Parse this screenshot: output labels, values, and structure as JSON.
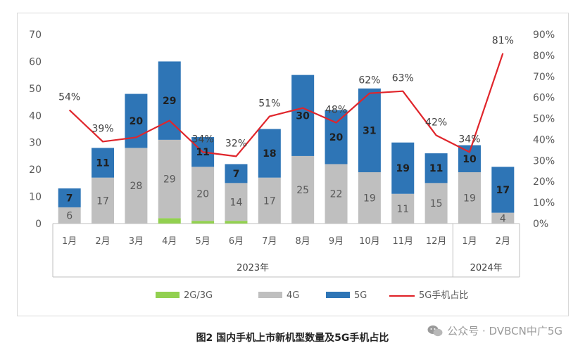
{
  "caption": "图2  国内手机上市新机型数量及5G手机占比",
  "watermark": {
    "text": "公众号 · DVBCN中广5G",
    "icon": "wechat-icon"
  },
  "chart_data": {
    "type": "bar",
    "stacked": true,
    "categories": [
      "1月",
      "2月",
      "3月",
      "4月",
      "5月",
      "6月",
      "7月",
      "8月",
      "9月",
      "10月",
      "11月",
      "12月",
      "1月",
      "2月"
    ],
    "groups": [
      {
        "label": "2023年",
        "start": 0,
        "end": 11
      },
      {
        "label": "2024年",
        "start": 12,
        "end": 13
      }
    ],
    "series": [
      {
        "name": "2G/3G",
        "color": "#92d050",
        "values": [
          0,
          0,
          0,
          2,
          1,
          1,
          0,
          0,
          0,
          0,
          0,
          0,
          0,
          0
        ]
      },
      {
        "name": "4G",
        "color": "#bfbfbf",
        "values": [
          6,
          17,
          28,
          29,
          20,
          14,
          17,
          25,
          22,
          19,
          11,
          15,
          19,
          4
        ]
      },
      {
        "name": "5G",
        "color": "#2e75b6",
        "values": [
          7,
          11,
          20,
          29,
          11,
          7,
          18,
          30,
          20,
          31,
          19,
          11,
          10,
          17
        ]
      }
    ],
    "line_series": {
      "name": "5G手机占比",
      "color": "#e0252b",
      "values": [
        54,
        39,
        41,
        49,
        34,
        32,
        51,
        55,
        48,
        62,
        63,
        42,
        34,
        81
      ]
    },
    "pct_labels": [
      "54%",
      "39%",
      "",
      "",
      "34%",
      "32%",
      "51%",
      "",
      "48%",
      "62%",
      "63%",
      "42%",
      "34%",
      "81%"
    ],
    "ylim": [
      0,
      70
    ],
    "yticks": [
      0,
      10,
      20,
      30,
      40,
      50,
      60,
      70
    ],
    "y2lim": [
      0,
      90
    ],
    "y2ticks": [
      "0%",
      "10%",
      "20%",
      "30%",
      "40%",
      "50%",
      "60%",
      "70%",
      "80%",
      "90%"
    ],
    "legend_position": "bottom",
    "grid": false
  }
}
